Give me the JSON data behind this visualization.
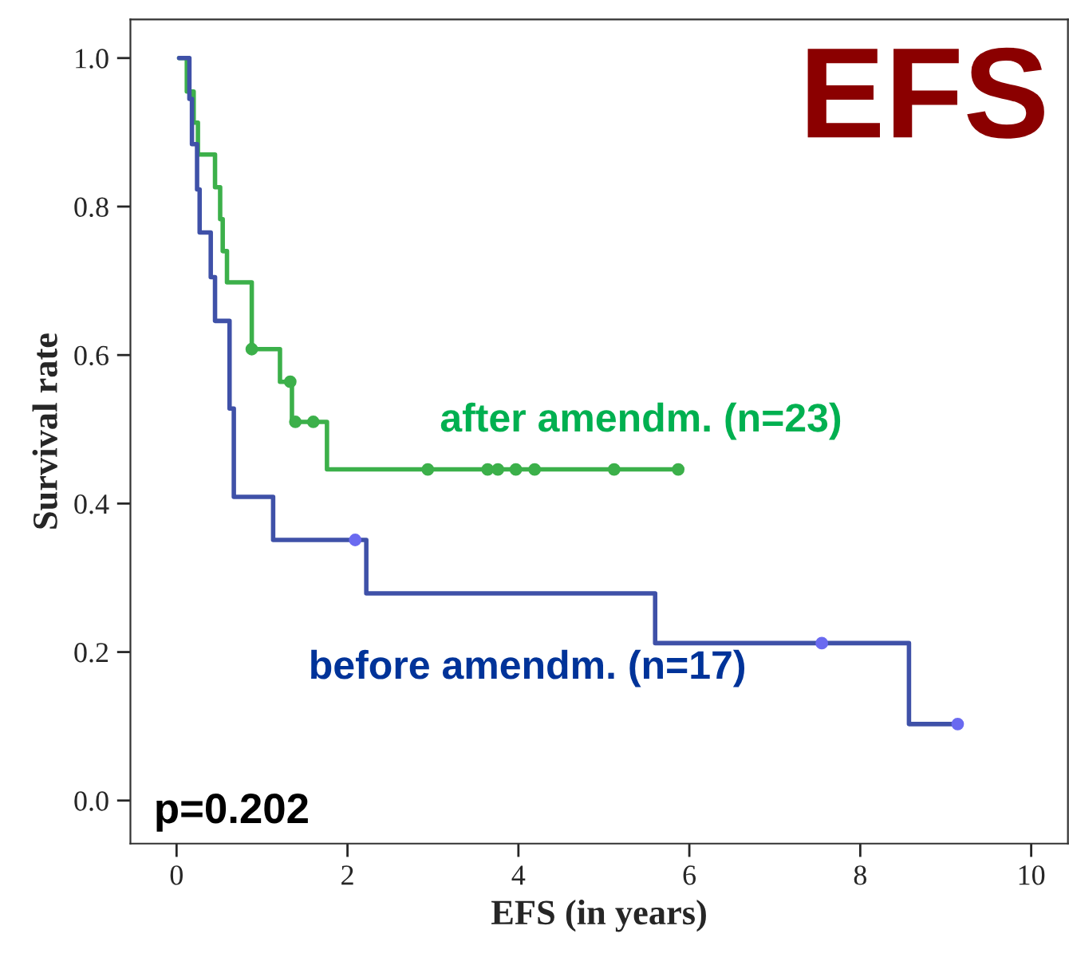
{
  "chart_data": {
    "type": "step",
    "title": "EFS",
    "xlabel": "EFS (in years)",
    "ylabel": "Survival rate",
    "xlim": [
      -0.54,
      10.43
    ],
    "ylim": [
      -0.058,
      1.052
    ],
    "xticks": [
      0,
      2,
      4,
      6,
      8,
      10
    ],
    "yticks": [
      {
        "value": 0,
        "label": "0.0"
      },
      {
        "value": 0.2,
        "label": "0.2"
      },
      {
        "value": 0.4,
        "label": "0.4"
      },
      {
        "value": 0.6,
        "label": "0.6"
      },
      {
        "value": 0.8,
        "label": "0.8"
      },
      {
        "value": 1,
        "label": "1.0"
      }
    ],
    "grid": false,
    "legend": false,
    "line_style": "solid",
    "series": [
      {
        "name": "after amendm. (n=23)",
        "color": "#3cb04a",
        "x": [
          0.03,
          0.12,
          0.2,
          0.25,
          0.45,
          0.51,
          0.54,
          0.59,
          0.88,
          1.21,
          1.35,
          1.76,
          5.87
        ],
        "values": [
          1.0,
          0.955,
          0.913,
          0.87,
          0.826,
          0.783,
          0.74,
          0.698,
          0.608,
          0.564,
          0.51,
          0.446,
          0.446
        ]
      },
      {
        "type": "scatter",
        "color": "#3cb04a",
        "marker": "circle",
        "x": [
          0.88,
          1.33,
          1.39,
          1.6,
          2.94,
          3.64,
          3.76,
          3.97,
          4.19,
          5.12,
          5.87
        ],
        "values": [
          0.608,
          0.564,
          0.51,
          0.51,
          0.446,
          0.446,
          0.446,
          0.446,
          0.446,
          0.446,
          0.446
        ]
      },
      {
        "name": "before amendm. (n=17)",
        "color": "#3f51a8",
        "x": [
          0.03,
          0.15,
          0.18,
          0.24,
          0.27,
          0.4,
          0.45,
          0.62,
          0.67,
          1.13,
          2.22,
          5.6,
          8.57,
          9.14
        ],
        "values": [
          1.0,
          0.945,
          0.884,
          0.823,
          0.765,
          0.705,
          0.646,
          0.528,
          0.409,
          0.351,
          0.279,
          0.212,
          0.103,
          0.103
        ]
      },
      {
        "type": "scatter",
        "color": "#6a6af0",
        "marker": "circle",
        "x": [
          2.09,
          7.55,
          9.14
        ],
        "values": [
          0.351,
          0.212,
          0.103
        ]
      }
    ],
    "annotations": [
      "p=0.202"
    ]
  }
}
